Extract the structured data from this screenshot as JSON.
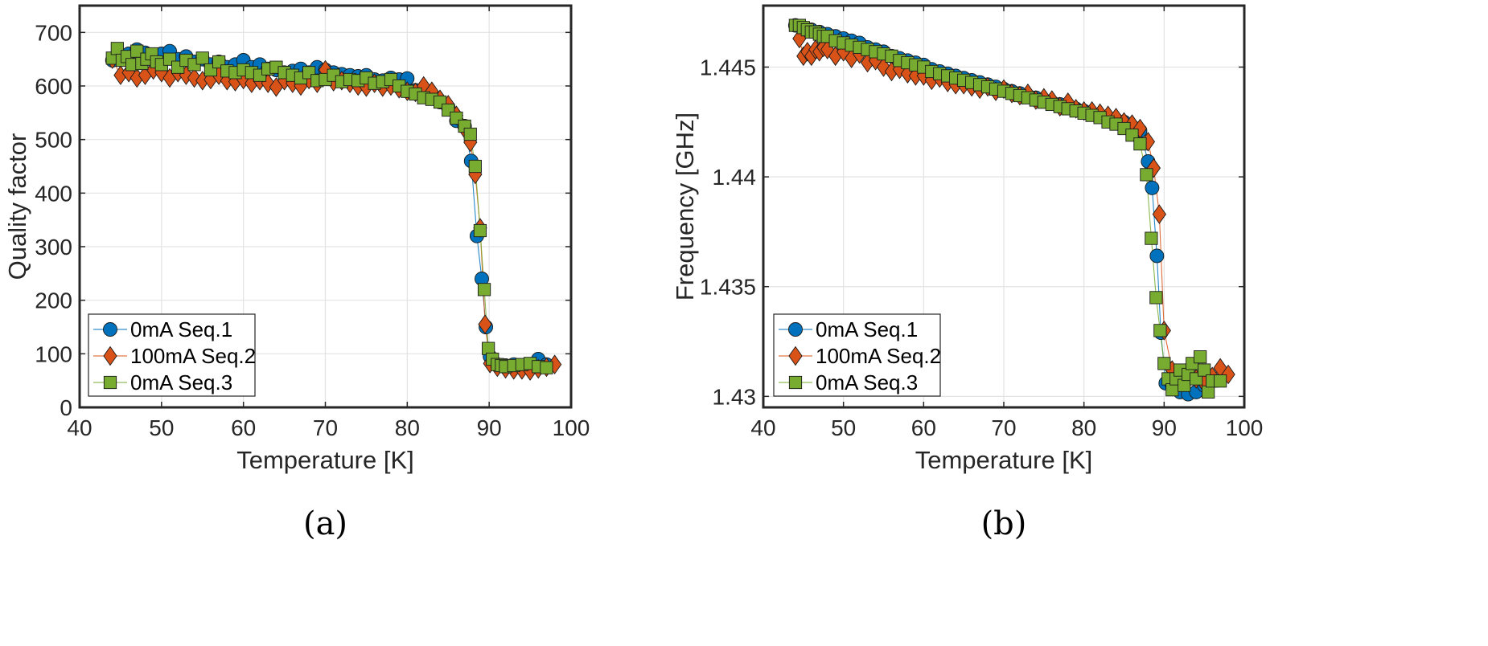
{
  "chart_data": [
    {
      "type": "scatter",
      "caption": "(a)",
      "xlabel": "Temperature [K]",
      "ylabel": "Quality factor",
      "xlim": [
        40,
        100
      ],
      "ylim": [
        0,
        750
      ],
      "xticks": [
        40,
        50,
        60,
        70,
        80,
        90,
        100
      ],
      "yticks": [
        0,
        100,
        200,
        300,
        400,
        500,
        600,
        700
      ],
      "xtick_labels": [
        "40",
        "50",
        "60",
        "70",
        "80",
        "90",
        "100"
      ],
      "ytick_labels": [
        "0",
        "100",
        "200",
        "300",
        "400",
        "500",
        "600",
        "700"
      ],
      "grid": true,
      "legend_position": "bottom-left",
      "series": [
        {
          "name": "0mA Seq.1",
          "marker": "circle",
          "color": "#0072BD",
          "x": [
            44,
            45,
            46,
            47,
            48,
            49,
            50,
            51,
            52,
            53,
            54,
            55,
            56,
            57,
            58,
            59,
            60,
            61,
            62,
            63,
            64,
            65,
            66,
            67,
            68,
            69,
            70,
            71,
            72,
            73,
            74,
            75,
            76,
            77,
            78,
            79,
            80,
            81,
            82,
            83,
            84,
            85,
            86,
            87,
            87.8,
            88.5,
            89.1,
            89.6,
            90.1,
            90.5,
            91,
            92,
            93,
            94,
            95,
            96,
            97
          ],
          "y": [
            648,
            655,
            660,
            668,
            662,
            655,
            660,
            665,
            650,
            655,
            645,
            650,
            640,
            645,
            635,
            640,
            648,
            635,
            640,
            632,
            630,
            625,
            628,
            632,
            625,
            635,
            630,
            625,
            622,
            620,
            618,
            620,
            612,
            610,
            615,
            612,
            614,
            592,
            588,
            580,
            570,
            560,
            535,
            525,
            460,
            320,
            240,
            150,
            95,
            82,
            80,
            78,
            80,
            78,
            80,
            90,
            80
          ]
        },
        {
          "name": "100mA Seq.2",
          "marker": "diamond",
          "color": "#D95319",
          "x": [
            44,
            45,
            46,
            47,
            48,
            49,
            50,
            51,
            52,
            53,
            54,
            55,
            56,
            57,
            58,
            59,
            60,
            61,
            62,
            63,
            64,
            65,
            66,
            67,
            68,
            69,
            70,
            71,
            72,
            73,
            74,
            75,
            76,
            77,
            78,
            79,
            80,
            81,
            82,
            83,
            84,
            85,
            86,
            87,
            87.7,
            88.3,
            88.9,
            89.5,
            90.1,
            91,
            92,
            93,
            94,
            95,
            96,
            97,
            98
          ],
          "y": [
            650,
            620,
            625,
            615,
            620,
            630,
            625,
            615,
            625,
            620,
            615,
            610,
            612,
            620,
            610,
            608,
            612,
            605,
            610,
            605,
            598,
            610,
            605,
            600,
            612,
            605,
            630,
            608,
            610,
            605,
            600,
            598,
            605,
            598,
            600,
            595,
            590,
            588,
            600,
            590,
            575,
            565,
            545,
            520,
            495,
            435,
            335,
            155,
            82,
            75,
            72,
            70,
            70,
            68,
            72,
            75,
            80
          ]
        },
        {
          "name": "0mA Seq.3",
          "marker": "square",
          "color": "#77AC30",
          "x": [
            44,
            44.6,
            45.2,
            45.8,
            46.4,
            47,
            47.6,
            48.2,
            48.8,
            49.4,
            50,
            51,
            52,
            53,
            54,
            55,
            56,
            57,
            58,
            59,
            60,
            61,
            62,
            63,
            64,
            65,
            66,
            67,
            68,
            69,
            70,
            71,
            72,
            73,
            74,
            75,
            76,
            77,
            78,
            79,
            80,
            81,
            82,
            83,
            84,
            85,
            86,
            87,
            87.7,
            88.3,
            88.9,
            89.4,
            89.9,
            90.4,
            91,
            91.5,
            92,
            93,
            94,
            95,
            96,
            97
          ],
          "y": [
            652,
            670,
            648,
            655,
            640,
            665,
            642,
            650,
            660,
            645,
            640,
            650,
            635,
            648,
            640,
            652,
            630,
            645,
            628,
            625,
            630,
            625,
            620,
            632,
            635,
            625,
            620,
            615,
            625,
            610,
            612,
            620,
            608,
            612,
            610,
            615,
            605,
            608,
            612,
            600,
            590,
            585,
            578,
            575,
            570,
            555,
            540,
            525,
            510,
            450,
            330,
            220,
            110,
            90,
            80,
            78,
            76,
            78,
            80,
            82,
            76,
            74
          ]
        }
      ]
    },
    {
      "type": "scatter",
      "caption": "(b)",
      "xlabel": "Temperature [K]",
      "ylabel": "Frequency [GHz]",
      "xlim": [
        40,
        100
      ],
      "ylim": [
        1.4295,
        1.4478
      ],
      "xticks": [
        40,
        50,
        60,
        70,
        80,
        90,
        100
      ],
      "yticks": [
        1.43,
        1.435,
        1.44,
        1.445
      ],
      "xtick_labels": [
        "40",
        "50",
        "60",
        "70",
        "80",
        "90",
        "100"
      ],
      "ytick_labels": [
        "1.43",
        "1.435",
        "1.44",
        "1.445"
      ],
      "grid": true,
      "legend_position": "bottom-left",
      "series": [
        {
          "name": "0mA Seq.1",
          "marker": "circle",
          "color": "#0072BD",
          "x": [
            44,
            45,
            46,
            47,
            48,
            49,
            50,
            51,
            52,
            53,
            54,
            55,
            56,
            57,
            58,
            59,
            60,
            61,
            62,
            63,
            64,
            65,
            66,
            67,
            68,
            69,
            70,
            71,
            72,
            73,
            74,
            75,
            76,
            77,
            78,
            79,
            80,
            81,
            82,
            83,
            84,
            85,
            86,
            87,
            88,
            88.5,
            89.1,
            89.6,
            90.2,
            91,
            92,
            93,
            94,
            95,
            96
          ],
          "y": [
            1.4469,
            1.4468,
            1.4467,
            1.4466,
            1.4465,
            1.4464,
            1.4463,
            1.4462,
            1.4461,
            1.4459,
            1.4458,
            1.4457,
            1.4455,
            1.4454,
            1.4453,
            1.4452,
            1.4451,
            1.4449,
            1.4448,
            1.4447,
            1.4446,
            1.4445,
            1.4444,
            1.4443,
            1.4442,
            1.4441,
            1.444,
            1.4439,
            1.4438,
            1.4437,
            1.4436,
            1.4435,
            1.4434,
            1.4433,
            1.4432,
            1.4431,
            1.443,
            1.4429,
            1.4428,
            1.4427,
            1.4426,
            1.4425,
            1.4423,
            1.4421,
            1.4407,
            1.4395,
            1.4364,
            1.4329,
            1.4306,
            1.4305,
            1.4302,
            1.4301,
            1.4302,
            1.4305,
            1.4307
          ]
        },
        {
          "name": "100mA Seq.2",
          "marker": "diamond",
          "color": "#D95319",
          "x": [
            44.5,
            45,
            45.5,
            46,
            46.5,
            47,
            47.5,
            48,
            49,
            50,
            51,
            52,
            53,
            54,
            55,
            56,
            57,
            58,
            59,
            60,
            61,
            62,
            63,
            64,
            65,
            66,
            67,
            68,
            69,
            70,
            71,
            72,
            73,
            74,
            75,
            76,
            77,
            78,
            79,
            80,
            81,
            82,
            83,
            84,
            85,
            86,
            87,
            88,
            88.7,
            89.4,
            90,
            91,
            92,
            93,
            94,
            95,
            96,
            97,
            98
          ],
          "y": [
            1.4463,
            1.4455,
            1.4457,
            1.4455,
            1.4458,
            1.4457,
            1.4459,
            1.4458,
            1.4455,
            1.4457,
            1.4454,
            1.4456,
            1.4452,
            1.4453,
            1.445,
            1.4448,
            1.4449,
            1.4447,
            1.4446,
            1.4446,
            1.4444,
            1.4445,
            1.4443,
            1.4442,
            1.4442,
            1.4441,
            1.444,
            1.4441,
            1.4439,
            1.444,
            1.4438,
            1.4437,
            1.4438,
            1.4435,
            1.4436,
            1.4435,
            1.4432,
            1.4434,
            1.4431,
            1.443,
            1.443,
            1.4429,
            1.4428,
            1.4427,
            1.4425,
            1.4424,
            1.4422,
            1.4416,
            1.4404,
            1.4383,
            1.433,
            1.4312,
            1.4308,
            1.4312,
            1.4308,
            1.4306,
            1.4309,
            1.4313,
            1.431
          ]
        },
        {
          "name": "0mA Seq.3",
          "marker": "square",
          "color": "#77AC30",
          "x": [
            44,
            44.5,
            45,
            45.5,
            46,
            46.5,
            47,
            47.5,
            48,
            49,
            50,
            51,
            52,
            53,
            54,
            55,
            56,
            57,
            58,
            59,
            60,
            61,
            62,
            63,
            64,
            65,
            66,
            67,
            68,
            69,
            70,
            71,
            72,
            73,
            74,
            75,
            76,
            77,
            78,
            79,
            80,
            81,
            82,
            83,
            84,
            85,
            86,
            87,
            87.8,
            88.4,
            89,
            89.5,
            90,
            90.5,
            91,
            91.5,
            92,
            92.5,
            93,
            93.5,
            94,
            94.5,
            95,
            95.5,
            96,
            97
          ],
          "y": [
            1.4469,
            1.4469,
            1.4468,
            1.4467,
            1.4466,
            1.4466,
            1.4465,
            1.4464,
            1.4464,
            1.4462,
            1.4461,
            1.446,
            1.4459,
            1.4458,
            1.4457,
            1.4456,
            1.4455,
            1.4453,
            1.4452,
            1.4451,
            1.445,
            1.4448,
            1.4447,
            1.4446,
            1.4445,
            1.4444,
            1.4443,
            1.4442,
            1.4441,
            1.444,
            1.4439,
            1.4438,
            1.4437,
            1.4436,
            1.4435,
            1.4434,
            1.4433,
            1.4432,
            1.4431,
            1.443,
            1.4429,
            1.4428,
            1.4427,
            1.4425,
            1.4424,
            1.4422,
            1.4419,
            1.4415,
            1.4401,
            1.4372,
            1.4345,
            1.433,
            1.4315,
            1.4308,
            1.4303,
            1.4308,
            1.4312,
            1.4305,
            1.431,
            1.4315,
            1.4308,
            1.4318,
            1.4312,
            1.4302,
            1.4307,
            1.4307
          ]
        }
      ]
    }
  ]
}
